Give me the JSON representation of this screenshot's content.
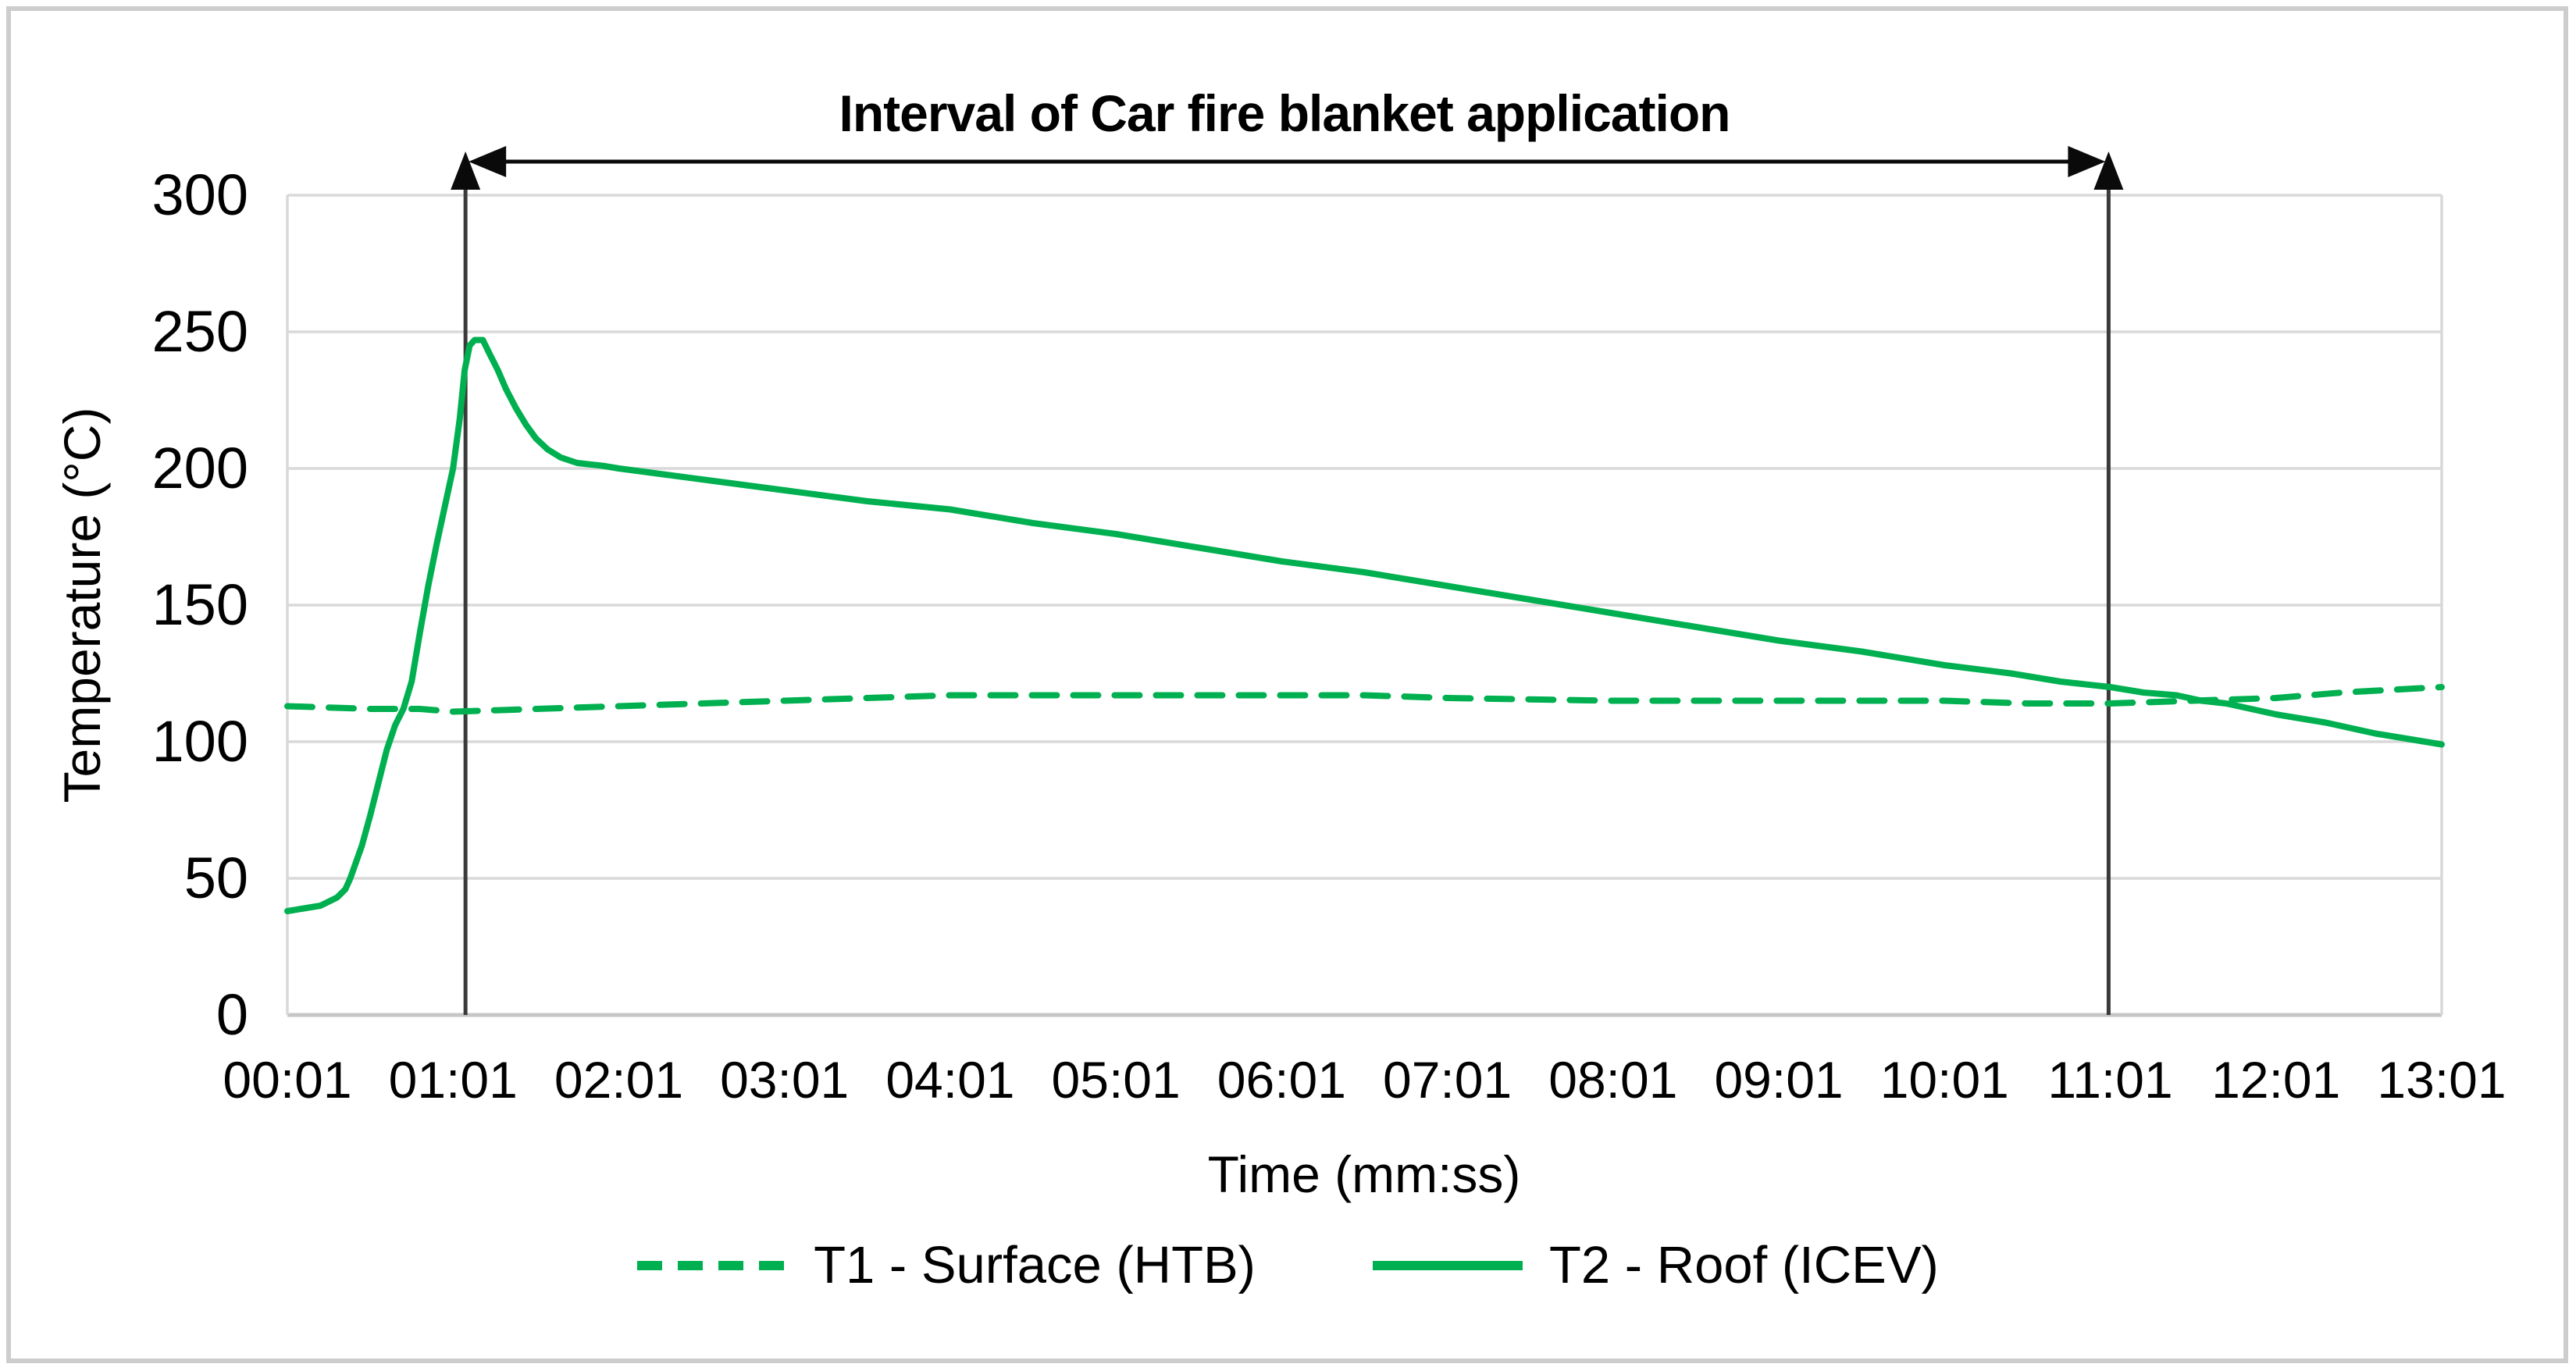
{
  "figure": {
    "background": "#ffffff",
    "border_color": "#cdcdcd"
  },
  "chart_data": {
    "type": "line",
    "title": "",
    "xlabel": "Time (mm:ss)",
    "ylabel": "Temperature (°C)",
    "xlim": [
      0,
      13
    ],
    "ylim": [
      0,
      300
    ],
    "grid": "horizontal-only",
    "legend_position": "bottom-center",
    "x_unit_note": "minutes after first tick 00:01",
    "xtick_labels": [
      "00:01",
      "01:01",
      "02:01",
      "03:01",
      "04:01",
      "05:01",
      "06:01",
      "07:01",
      "08:01",
      "09:01",
      "10:01",
      "11:01",
      "12:01",
      "13:01"
    ],
    "ytick_values": [
      0,
      50,
      100,
      150,
      200,
      250,
      300
    ],
    "colors": {
      "series_green": "#00B050",
      "gridline": "#D9D9D9",
      "axis_line": "#C6C6C6",
      "marker_line": "#3A3A3A",
      "arrow_black": "#0a0a0a"
    },
    "series": [
      {
        "name": "T1 - Surface (HTB)",
        "style": "dashed",
        "color": "#00B050",
        "points": [
          [
            0,
            113
          ],
          [
            0.5,
            112
          ],
          [
            0.8,
            112
          ],
          [
            1.0,
            111
          ],
          [
            1.5,
            112
          ],
          [
            2.0,
            113
          ],
          [
            2.5,
            114
          ],
          [
            3.0,
            115
          ],
          [
            3.5,
            116
          ],
          [
            4.0,
            117
          ],
          [
            5.0,
            117
          ],
          [
            6.0,
            117
          ],
          [
            6.5,
            117
          ],
          [
            7.0,
            116
          ],
          [
            8.0,
            115
          ],
          [
            9.0,
            115
          ],
          [
            10.0,
            115
          ],
          [
            10.5,
            114
          ],
          [
            11.0,
            114
          ],
          [
            11.5,
            115
          ],
          [
            12.0,
            116
          ],
          [
            12.4,
            118
          ],
          [
            12.7,
            119
          ],
          [
            13.0,
            120
          ]
        ]
      },
      {
        "name": "T2 - Roof (ICEV)",
        "style": "solid",
        "color": "#00B050",
        "points": [
          [
            0,
            38
          ],
          [
            0.1,
            39
          ],
          [
            0.2,
            40
          ],
          [
            0.3,
            43
          ],
          [
            0.35,
            46
          ],
          [
            0.38,
            50
          ],
          [
            0.45,
            62
          ],
          [
            0.5,
            73
          ],
          [
            0.55,
            85
          ],
          [
            0.6,
            97
          ],
          [
            0.65,
            106
          ],
          [
            0.7,
            112
          ],
          [
            0.75,
            122
          ],
          [
            0.8,
            140
          ],
          [
            0.85,
            157
          ],
          [
            0.9,
            172
          ],
          [
            0.95,
            186
          ],
          [
            1.0,
            200
          ],
          [
            1.04,
            218
          ],
          [
            1.07,
            236
          ],
          [
            1.1,
            245
          ],
          [
            1.13,
            247
          ],
          [
            1.18,
            247
          ],
          [
            1.22,
            242
          ],
          [
            1.27,
            236
          ],
          [
            1.32,
            229
          ],
          [
            1.38,
            222
          ],
          [
            1.44,
            216
          ],
          [
            1.5,
            211
          ],
          [
            1.57,
            207
          ],
          [
            1.65,
            204
          ],
          [
            1.75,
            202
          ],
          [
            1.9,
            201
          ],
          [
            2.0,
            200
          ],
          [
            2.25,
            198
          ],
          [
            2.5,
            196
          ],
          [
            3.0,
            192
          ],
          [
            3.5,
            188
          ],
          [
            4.0,
            185
          ],
          [
            4.5,
            180
          ],
          [
            5.0,
            176
          ],
          [
            5.5,
            171
          ],
          [
            6.0,
            166
          ],
          [
            6.5,
            162
          ],
          [
            7.0,
            157
          ],
          [
            7.5,
            152
          ],
          [
            8.0,
            147
          ],
          [
            8.5,
            142
          ],
          [
            9.0,
            137
          ],
          [
            9.5,
            133
          ],
          [
            10.0,
            128
          ],
          [
            10.4,
            125
          ],
          [
            10.7,
            122
          ],
          [
            11.0,
            120
          ],
          [
            11.2,
            118
          ],
          [
            11.4,
            117
          ],
          [
            11.55,
            115
          ],
          [
            11.7,
            114
          ],
          [
            11.85,
            112
          ],
          [
            12.0,
            110
          ],
          [
            12.3,
            107
          ],
          [
            12.6,
            103
          ],
          [
            12.8,
            101
          ],
          [
            13.0,
            99
          ]
        ]
      }
    ],
    "annotation": {
      "label": "Interval of Car fire blanket application",
      "start_t": 1.075,
      "end_t": 10.99
    }
  }
}
